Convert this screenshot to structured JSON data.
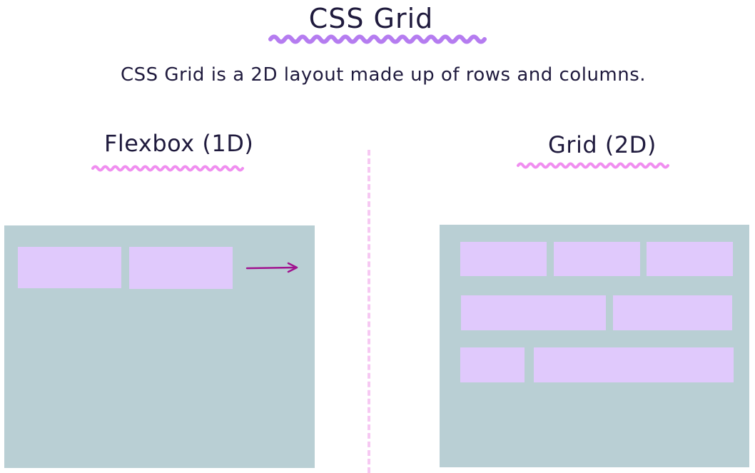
{
  "header": {
    "title": "CSS Grid",
    "subtitle": "CSS Grid is a 2D layout made up of rows and columns."
  },
  "left": {
    "label": "Flexbox (1D)"
  },
  "right": {
    "label": "Grid (2D)"
  },
  "colors": {
    "ink": "#1f1a3d",
    "title_underline": "#b57cf0",
    "label_underline": "#f08ef0",
    "divider": "#f6c8f2",
    "panel": "#b9cfd4",
    "item": "#e0c9fc",
    "arrow": "#a0138f"
  }
}
